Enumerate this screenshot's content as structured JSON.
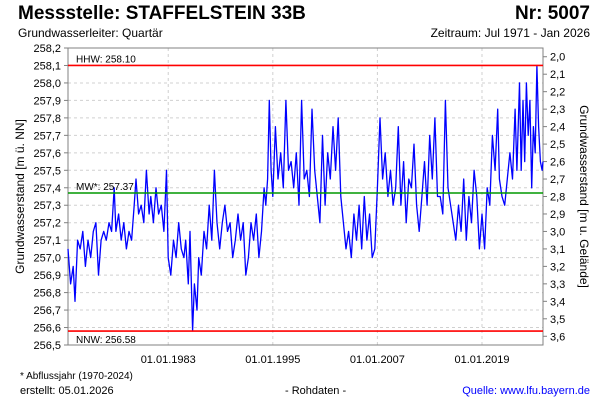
{
  "header": {
    "title": "Messstelle: STAFFELSTEIN 33B",
    "number": "Nr: 5007",
    "aquifer": "Grundwasserleiter: Quartär",
    "period": "Zeitraum: Jul 1971 - Jan 2026"
  },
  "footer": {
    "note": "* Abflussjahr (1970-2024)",
    "created": "erstellt:  05.01.2026",
    "rawdata": "- Rohdaten -",
    "source": "Quelle: www.lfu.bayern.de"
  },
  "colors": {
    "series": "#0000ff",
    "hhw": "#ff0000",
    "nnw": "#ff0000",
    "mw": "#009900",
    "grid": "#d0d0d0",
    "link": "#0000ff"
  },
  "chart_data": {
    "type": "line",
    "ylabel": "Grundwasserstand [m ü. NN]",
    "ylabel_right": "Grundwasserstand [m u. Gelände]",
    "ylim": [
      256.5,
      258.2
    ],
    "yticks": [
      "258,2",
      "258,1",
      "258,0",
      "257,9",
      "257,8",
      "257,7",
      "257,6",
      "257,5",
      "257,4",
      "257,3",
      "257,2",
      "257,1",
      "257,0",
      "256,9",
      "256,8",
      "256,7",
      "256,6",
      "256,5"
    ],
    "yticks_right": [
      "2,0",
      "2,1",
      "2,2",
      "2,3",
      "2,4",
      "2,5",
      "2,6",
      "2,7",
      "2,8",
      "2,9",
      "3,0",
      "3,1",
      "3,2",
      "3,3",
      "3,4",
      "3,5",
      "3,6"
    ],
    "ground_level": 260.15,
    "xlim": [
      1971.5,
      2026.0
    ],
    "xticks": [
      {
        "value": 1983,
        "label": "01.01.1983"
      },
      {
        "value": 1995,
        "label": "01.01.1995"
      },
      {
        "value": 2007,
        "label": "01.01.2007"
      },
      {
        "value": 2019,
        "label": "01.01.2019"
      }
    ],
    "reference_lines": [
      {
        "name": "HHW",
        "label": "HHW: 258.10",
        "value": 258.1,
        "color": "#ff0000"
      },
      {
        "name": "MW",
        "label": "MW*: 257.37",
        "value": 257.37,
        "color": "#009900"
      },
      {
        "name": "NNW",
        "label": "NNW: 256.58",
        "value": 256.58,
        "color": "#ff0000"
      }
    ],
    "series": [
      {
        "name": "Grundwasserstand",
        "color": "#0000ff",
        "x": [
          1971.5,
          1971.8,
          1972.1,
          1972.3,
          1972.6,
          1972.9,
          1973.2,
          1973.5,
          1973.8,
          1974.1,
          1974.4,
          1974.7,
          1975.0,
          1975.3,
          1975.6,
          1975.9,
          1976.2,
          1976.5,
          1976.8,
          1977.0,
          1977.3,
          1977.6,
          1977.9,
          1978.2,
          1978.5,
          1978.8,
          1979.1,
          1979.3,
          1979.6,
          1979.9,
          1980.2,
          1980.5,
          1980.8,
          1981.0,
          1981.3,
          1981.6,
          1981.9,
          1982.2,
          1982.5,
          1982.8,
          1983.0,
          1983.3,
          1983.6,
          1983.9,
          1984.2,
          1984.5,
          1984.8,
          1985.0,
          1985.3,
          1985.5,
          1985.8,
          1986.0,
          1986.3,
          1986.5,
          1986.8,
          1987.1,
          1987.4,
          1987.7,
          1988.0,
          1988.3,
          1988.6,
          1988.9,
          1989.2,
          1989.5,
          1989.8,
          1990.1,
          1990.4,
          1990.7,
          1991.0,
          1991.3,
          1991.6,
          1991.9,
          1992.2,
          1992.5,
          1992.8,
          1993.1,
          1993.4,
          1993.7,
          1994.0,
          1994.2,
          1994.4,
          1994.6,
          1994.8,
          1995.0,
          1995.3,
          1995.6,
          1995.9,
          1996.2,
          1996.5,
          1996.8,
          1997.1,
          1997.4,
          1997.7,
          1998.0,
          1998.3,
          1998.6,
          1998.9,
          1999.2,
          1999.5,
          1999.8,
          2000.1,
          2000.4,
          2000.7,
          2001.0,
          2001.3,
          2001.6,
          2001.9,
          2002.2,
          2002.5,
          2002.8,
          2003.1,
          2003.4,
          2003.7,
          2004.0,
          2004.3,
          2004.6,
          2004.9,
          2005.2,
          2005.5,
          2005.8,
          2006.1,
          2006.4,
          2006.7,
          2007.0,
          2007.3,
          2007.6,
          2007.9,
          2008.2,
          2008.5,
          2008.8,
          2009.1,
          2009.4,
          2009.7,
          2010.0,
          2010.3,
          2010.6,
          2010.9,
          2011.2,
          2011.5,
          2011.8,
          2012.1,
          2012.4,
          2012.7,
          2013.0,
          2013.3,
          2013.6,
          2013.9,
          2014.2,
          2014.5,
          2014.8,
          2015.1,
          2015.4,
          2015.7,
          2016.0,
          2016.3,
          2016.6,
          2016.9,
          2017.2,
          2017.5,
          2017.8,
          2018.1,
          2018.4,
          2018.7,
          2019.0,
          2019.3,
          2019.6,
          2019.9,
          2020.2,
          2020.5,
          2020.8,
          2021.0,
          2021.3,
          2021.6,
          2021.9,
          2022.2,
          2022.5,
          2022.8,
          2023.0,
          2023.3,
          2023.5,
          2023.7,
          2023.9,
          2024.1,
          2024.3,
          2024.5,
          2024.7,
          2024.9,
          2025.1,
          2025.3,
          2025.5,
          2025.7,
          2025.9,
          2026.0
        ],
        "y": [
          257.05,
          256.85,
          256.95,
          256.75,
          257.1,
          257.05,
          257.15,
          256.95,
          257.1,
          257.0,
          257.15,
          257.2,
          256.9,
          257.1,
          257.15,
          257.1,
          257.2,
          257.15,
          257.4,
          257.15,
          257.25,
          257.1,
          257.2,
          257.05,
          257.15,
          257.1,
          257.3,
          257.45,
          257.25,
          257.3,
          257.2,
          257.5,
          257.25,
          257.35,
          257.2,
          257.4,
          257.25,
          257.3,
          257.15,
          257.5,
          257.0,
          256.9,
          257.1,
          257.0,
          257.2,
          257.05,
          257.0,
          257.1,
          256.85,
          257.15,
          256.58,
          256.85,
          256.7,
          257.0,
          256.9,
          257.15,
          257.05,
          257.3,
          257.1,
          257.5,
          257.2,
          257.05,
          257.2,
          257.3,
          257.15,
          257.2,
          257.0,
          257.1,
          257.25,
          257.1,
          257.2,
          256.9,
          257.0,
          257.2,
          257.1,
          257.25,
          257.0,
          257.15,
          257.4,
          257.3,
          257.45,
          257.9,
          257.5,
          257.35,
          257.75,
          257.45,
          257.6,
          257.4,
          257.9,
          257.5,
          257.55,
          257.4,
          257.6,
          257.3,
          257.9,
          257.45,
          257.5,
          257.35,
          257.85,
          257.5,
          257.35,
          257.2,
          257.7,
          257.3,
          257.6,
          257.45,
          257.75,
          257.5,
          257.8,
          257.35,
          257.2,
          257.05,
          257.15,
          257.0,
          257.25,
          257.1,
          257.3,
          257.05,
          257.35,
          257.1,
          257.25,
          257.0,
          257.05,
          257.4,
          257.8,
          257.45,
          257.6,
          257.35,
          257.5,
          257.3,
          257.4,
          257.75,
          257.3,
          257.55,
          257.2,
          257.45,
          257.4,
          257.65,
          257.3,
          257.15,
          257.35,
          257.55,
          257.3,
          257.7,
          257.45,
          257.8,
          257.35,
          257.35,
          257.25,
          257.9,
          257.4,
          257.3,
          257.2,
          257.1,
          257.3,
          257.15,
          257.45,
          257.1,
          257.35,
          257.2,
          257.5,
          257.35,
          257.05,
          257.25,
          257.05,
          257.4,
          257.3,
          257.7,
          257.5,
          257.85,
          257.45,
          257.35,
          257.3,
          257.45,
          257.6,
          257.45,
          257.85,
          257.5,
          258.0,
          257.5,
          257.9,
          257.55,
          258.0,
          257.7,
          257.9,
          257.4,
          257.75,
          257.6,
          258.1,
          257.75,
          257.55,
          257.5,
          257.55
        ]
      }
    ]
  }
}
